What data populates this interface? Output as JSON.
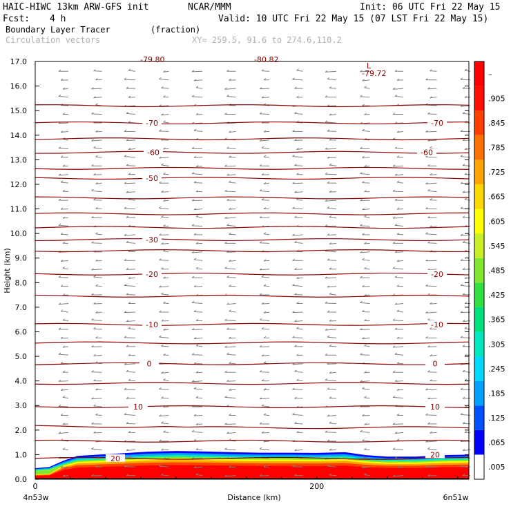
{
  "header": {
    "model": "HAIC-HIWC 13km ARW-GFS init",
    "org": "NCAR/MMM",
    "init": "Init: 06 UTC Fri 22 May 15",
    "fcst_label": "Fcst:",
    "fcst_value": "4 h",
    "valid": "Valid: 10 UTC Fri 22 May 15 (07 LST Fri 22 May 15)",
    "field": "Boundary Layer Tracer",
    "units": "(fraction)",
    "vectors": "Circulation vectors",
    "xy": "XY= 259.5, 91.6 to 274.6,110.2"
  },
  "colors": {
    "contour": "#8b0000",
    "vector": "#808080",
    "vector_label": "#b0b0b0"
  },
  "chart_data": {
    "type": "heatmap",
    "title": "Boundary Layer Tracer",
    "ylabel": "Height (km)",
    "xlabel": "Distance (km)",
    "xlim": [
      0,
      308
    ],
    "ylim": [
      0,
      17
    ],
    "x_ticks": [
      0,
      200
    ],
    "y_ticks": [
      "0.0",
      "1.0",
      "2.0",
      "3.0",
      "4.0",
      "5.0",
      "6.0",
      "7.0",
      "8.0",
      "9.0",
      "10.0",
      "11.0",
      "12.0",
      "13.0",
      "14.0",
      "15.0",
      "16.0",
      "17.0"
    ],
    "x_end_labels": {
      "left": "4n53w",
      "right": "6n51w"
    },
    "colorbar": {
      "labels": [
        ".005",
        ".065",
        ".125",
        ".185",
        ".245",
        ".305",
        ".365",
        ".425",
        ".485",
        ".545",
        ".605",
        ".665",
        ".725",
        ".785",
        ".845",
        ".905",
        "–"
      ],
      "colors": [
        "#ffffff",
        "#0000ff",
        "#0050ff",
        "#00a0ff",
        "#00d8ff",
        "#00e8c0",
        "#00e080",
        "#30e040",
        "#80e830",
        "#c8f028",
        "#ffff00",
        "#ffd700",
        "#ffa500",
        "#ff7000",
        "#ff4000",
        "#ff1000",
        "#ff0000"
      ]
    },
    "boundary_layer": {
      "x": [
        0,
        10,
        20,
        30,
        45,
        60,
        80,
        100,
        120,
        140,
        160,
        180,
        200,
        220,
        235,
        250,
        270,
        290,
        308
      ],
      "top": [
        0.45,
        0.5,
        0.75,
        0.95,
        1.0,
        1.05,
        1.12,
        1.15,
        1.13,
        1.1,
        1.08,
        1.08,
        1.07,
        1.1,
        0.98,
        0.92,
        0.92,
        0.98,
        1.0
      ]
    },
    "temperature_contours": [
      {
        "value": -70,
        "labels": [
          "-70",
          "-70"
        ]
      },
      {
        "value": -60,
        "labels": [
          "-60",
          "-60"
        ]
      },
      {
        "value": -50,
        "labels": [
          "-50"
        ]
      },
      {
        "value": -30,
        "labels": [
          "-30"
        ]
      },
      {
        "value": -20,
        "labels": [
          "-20",
          "-20"
        ]
      },
      {
        "value": -10,
        "labels": [
          "-10",
          "-10"
        ]
      },
      {
        "value": 0,
        "labels": [
          "0",
          "0"
        ]
      },
      {
        "value": 10,
        "labels": [
          "10",
          "10"
        ]
      },
      {
        "value": 20,
        "labels": [
          "20",
          "20"
        ]
      }
    ],
    "annotations": [
      "L",
      "-79.72",
      "-79.80",
      "-80.82"
    ]
  }
}
